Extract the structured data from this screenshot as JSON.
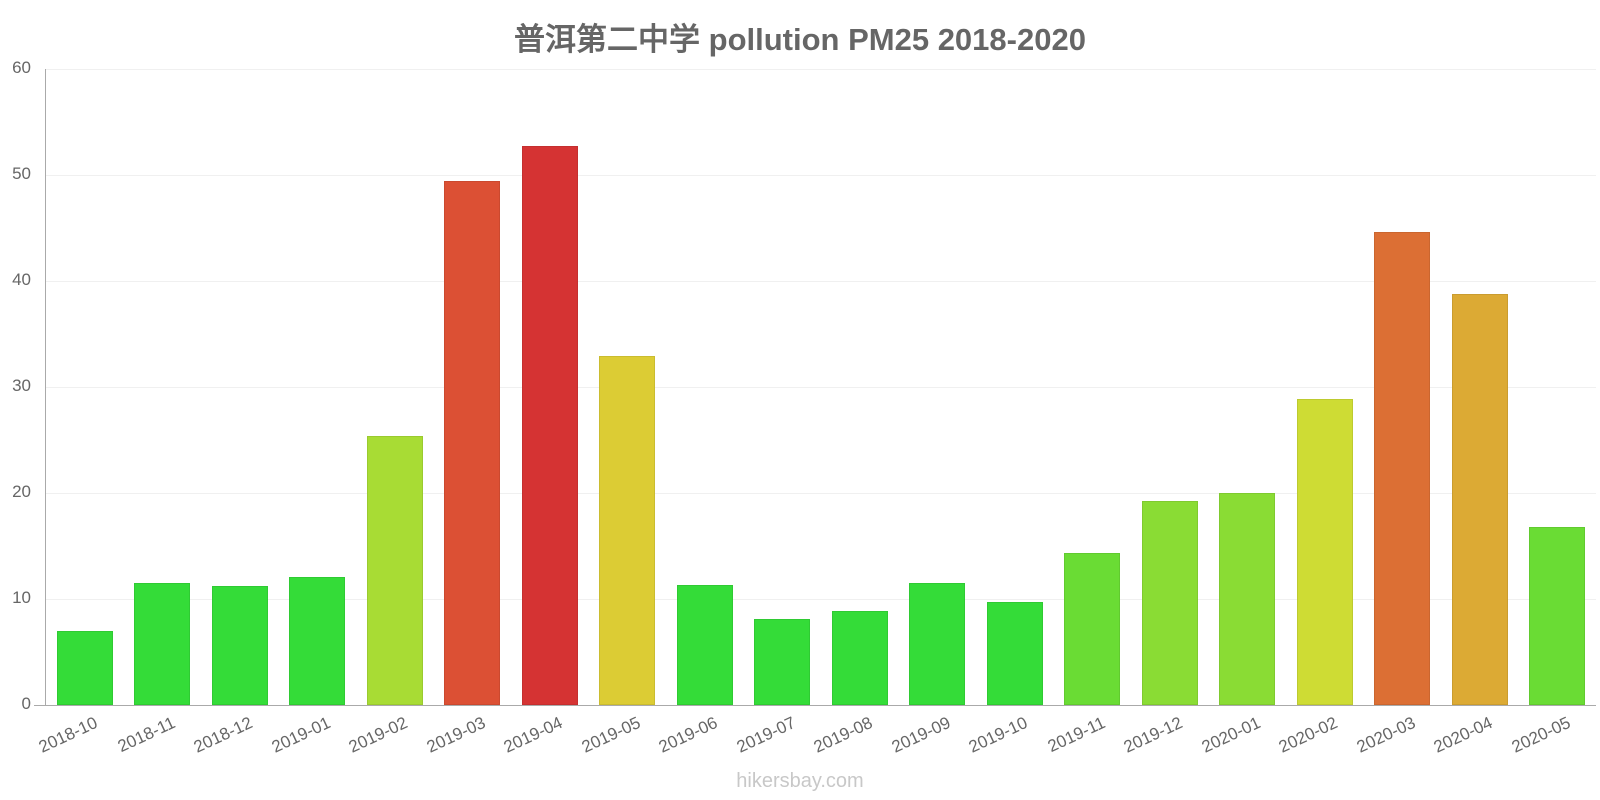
{
  "chart_data": {
    "type": "bar",
    "title": "普洱第二中学 pollution PM25 2018-2020",
    "xlabel": "",
    "ylabel": "",
    "ylim": [
      0,
      60
    ],
    "yticks": [
      0,
      10,
      20,
      30,
      40,
      50,
      60
    ],
    "grid": true,
    "legend": null,
    "categories": [
      "2018-10",
      "2018-11",
      "2018-12",
      "2019-01",
      "2019-02",
      "2019-03",
      "2019-04",
      "2019-05",
      "2019-06",
      "2019-07",
      "2019-08",
      "2019-09",
      "2019-10",
      "2019-11",
      "2019-12",
      "2020-01",
      "2020-02",
      "2020-03",
      "2020-04",
      "2020-05"
    ],
    "values": [
      7.0,
      11.5,
      11.2,
      12.1,
      25.4,
      49.4,
      52.7,
      32.9,
      11.3,
      8.1,
      8.9,
      11.5,
      9.7,
      14.3,
      19.2,
      20.0,
      28.9,
      44.6,
      38.8,
      16.8
    ],
    "colors": [
      "#34dc38",
      "#34dc38",
      "#34dc38",
      "#34dc38",
      "#a8dc34",
      "#dc5034",
      "#d53333",
      "#dccc34",
      "#34dc38",
      "#34dc38",
      "#34dc38",
      "#34dc38",
      "#34dc38",
      "#6adc34",
      "#8adc34",
      "#8adc34",
      "#cedc34",
      "#dc6f34",
      "#dcaa34",
      "#6adc34"
    ]
  },
  "footer": {
    "watermark": "hikersbay.com"
  }
}
